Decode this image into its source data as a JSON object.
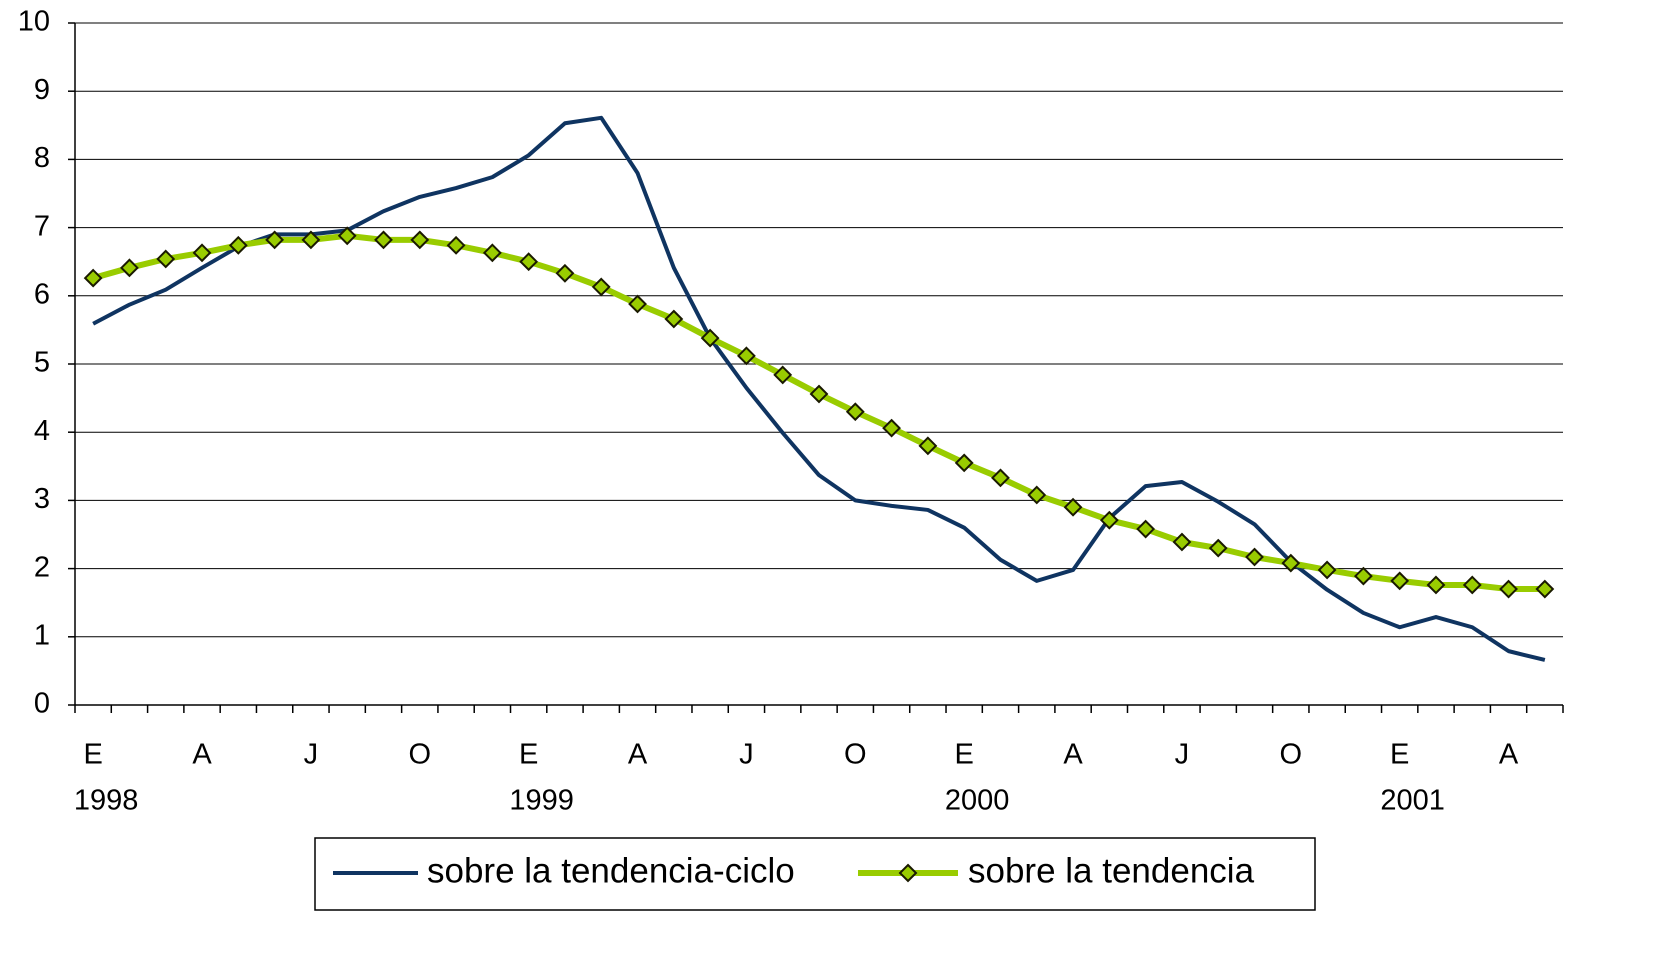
{
  "chart_data": {
    "type": "line",
    "categories": [
      "E",
      null,
      null,
      "A",
      null,
      null,
      "J",
      null,
      null,
      "O",
      null,
      null,
      "E",
      null,
      null,
      "A",
      null,
      null,
      "J",
      null,
      null,
      "O",
      null,
      null,
      "E",
      null,
      null,
      "A",
      null,
      null,
      "J",
      null,
      null,
      "O",
      null,
      null,
      "E",
      null,
      null,
      "A",
      null
    ],
    "category_years": [
      "1998",
      null,
      null,
      null,
      null,
      null,
      null,
      null,
      null,
      null,
      null,
      null,
      "1999",
      null,
      null,
      null,
      null,
      null,
      null,
      null,
      null,
      null,
      null,
      null,
      "2000",
      null,
      null,
      null,
      null,
      null,
      null,
      null,
      null,
      null,
      null,
      null,
      "2001",
      null,
      null,
      null,
      null
    ],
    "series": [
      {
        "name": "sobre la tendencia-ciclo",
        "color": "#0f3461",
        "marker": null,
        "values": [
          5.59,
          5.87,
          6.09,
          6.41,
          6.72,
          6.9,
          6.9,
          6.96,
          7.24,
          7.45,
          7.58,
          7.74,
          8.06,
          8.53,
          8.61,
          7.8,
          6.41,
          5.38,
          4.65,
          3.99,
          3.37,
          3.0,
          2.92,
          2.86,
          2.6,
          2.13,
          1.82,
          1.98,
          2.74,
          3.21,
          3.27,
          2.98,
          2.65,
          2.1,
          1.69,
          1.35,
          1.14,
          1.29,
          1.14,
          0.79,
          0.66
        ]
      },
      {
        "name": "sobre la tendencia",
        "color": "#99cc00",
        "marker": "diamond",
        "values": [
          6.26,
          6.41,
          6.54,
          6.63,
          6.74,
          6.82,
          6.82,
          6.88,
          6.82,
          6.82,
          6.74,
          6.63,
          6.5,
          6.33,
          6.13,
          5.88,
          5.66,
          5.38,
          5.12,
          4.84,
          4.56,
          4.3,
          4.06,
          3.8,
          3.55,
          3.33,
          3.08,
          2.9,
          2.71,
          2.58,
          2.39,
          2.3,
          2.17,
          2.08,
          1.98,
          1.89,
          1.82,
          1.76,
          1.76,
          1.7,
          1.7
        ]
      }
    ],
    "ylim": [
      0,
      10
    ],
    "yticks": [
      0,
      1,
      2,
      3,
      4,
      5,
      6,
      7,
      8,
      9,
      10
    ],
    "grid": true,
    "legend": "bottom"
  }
}
